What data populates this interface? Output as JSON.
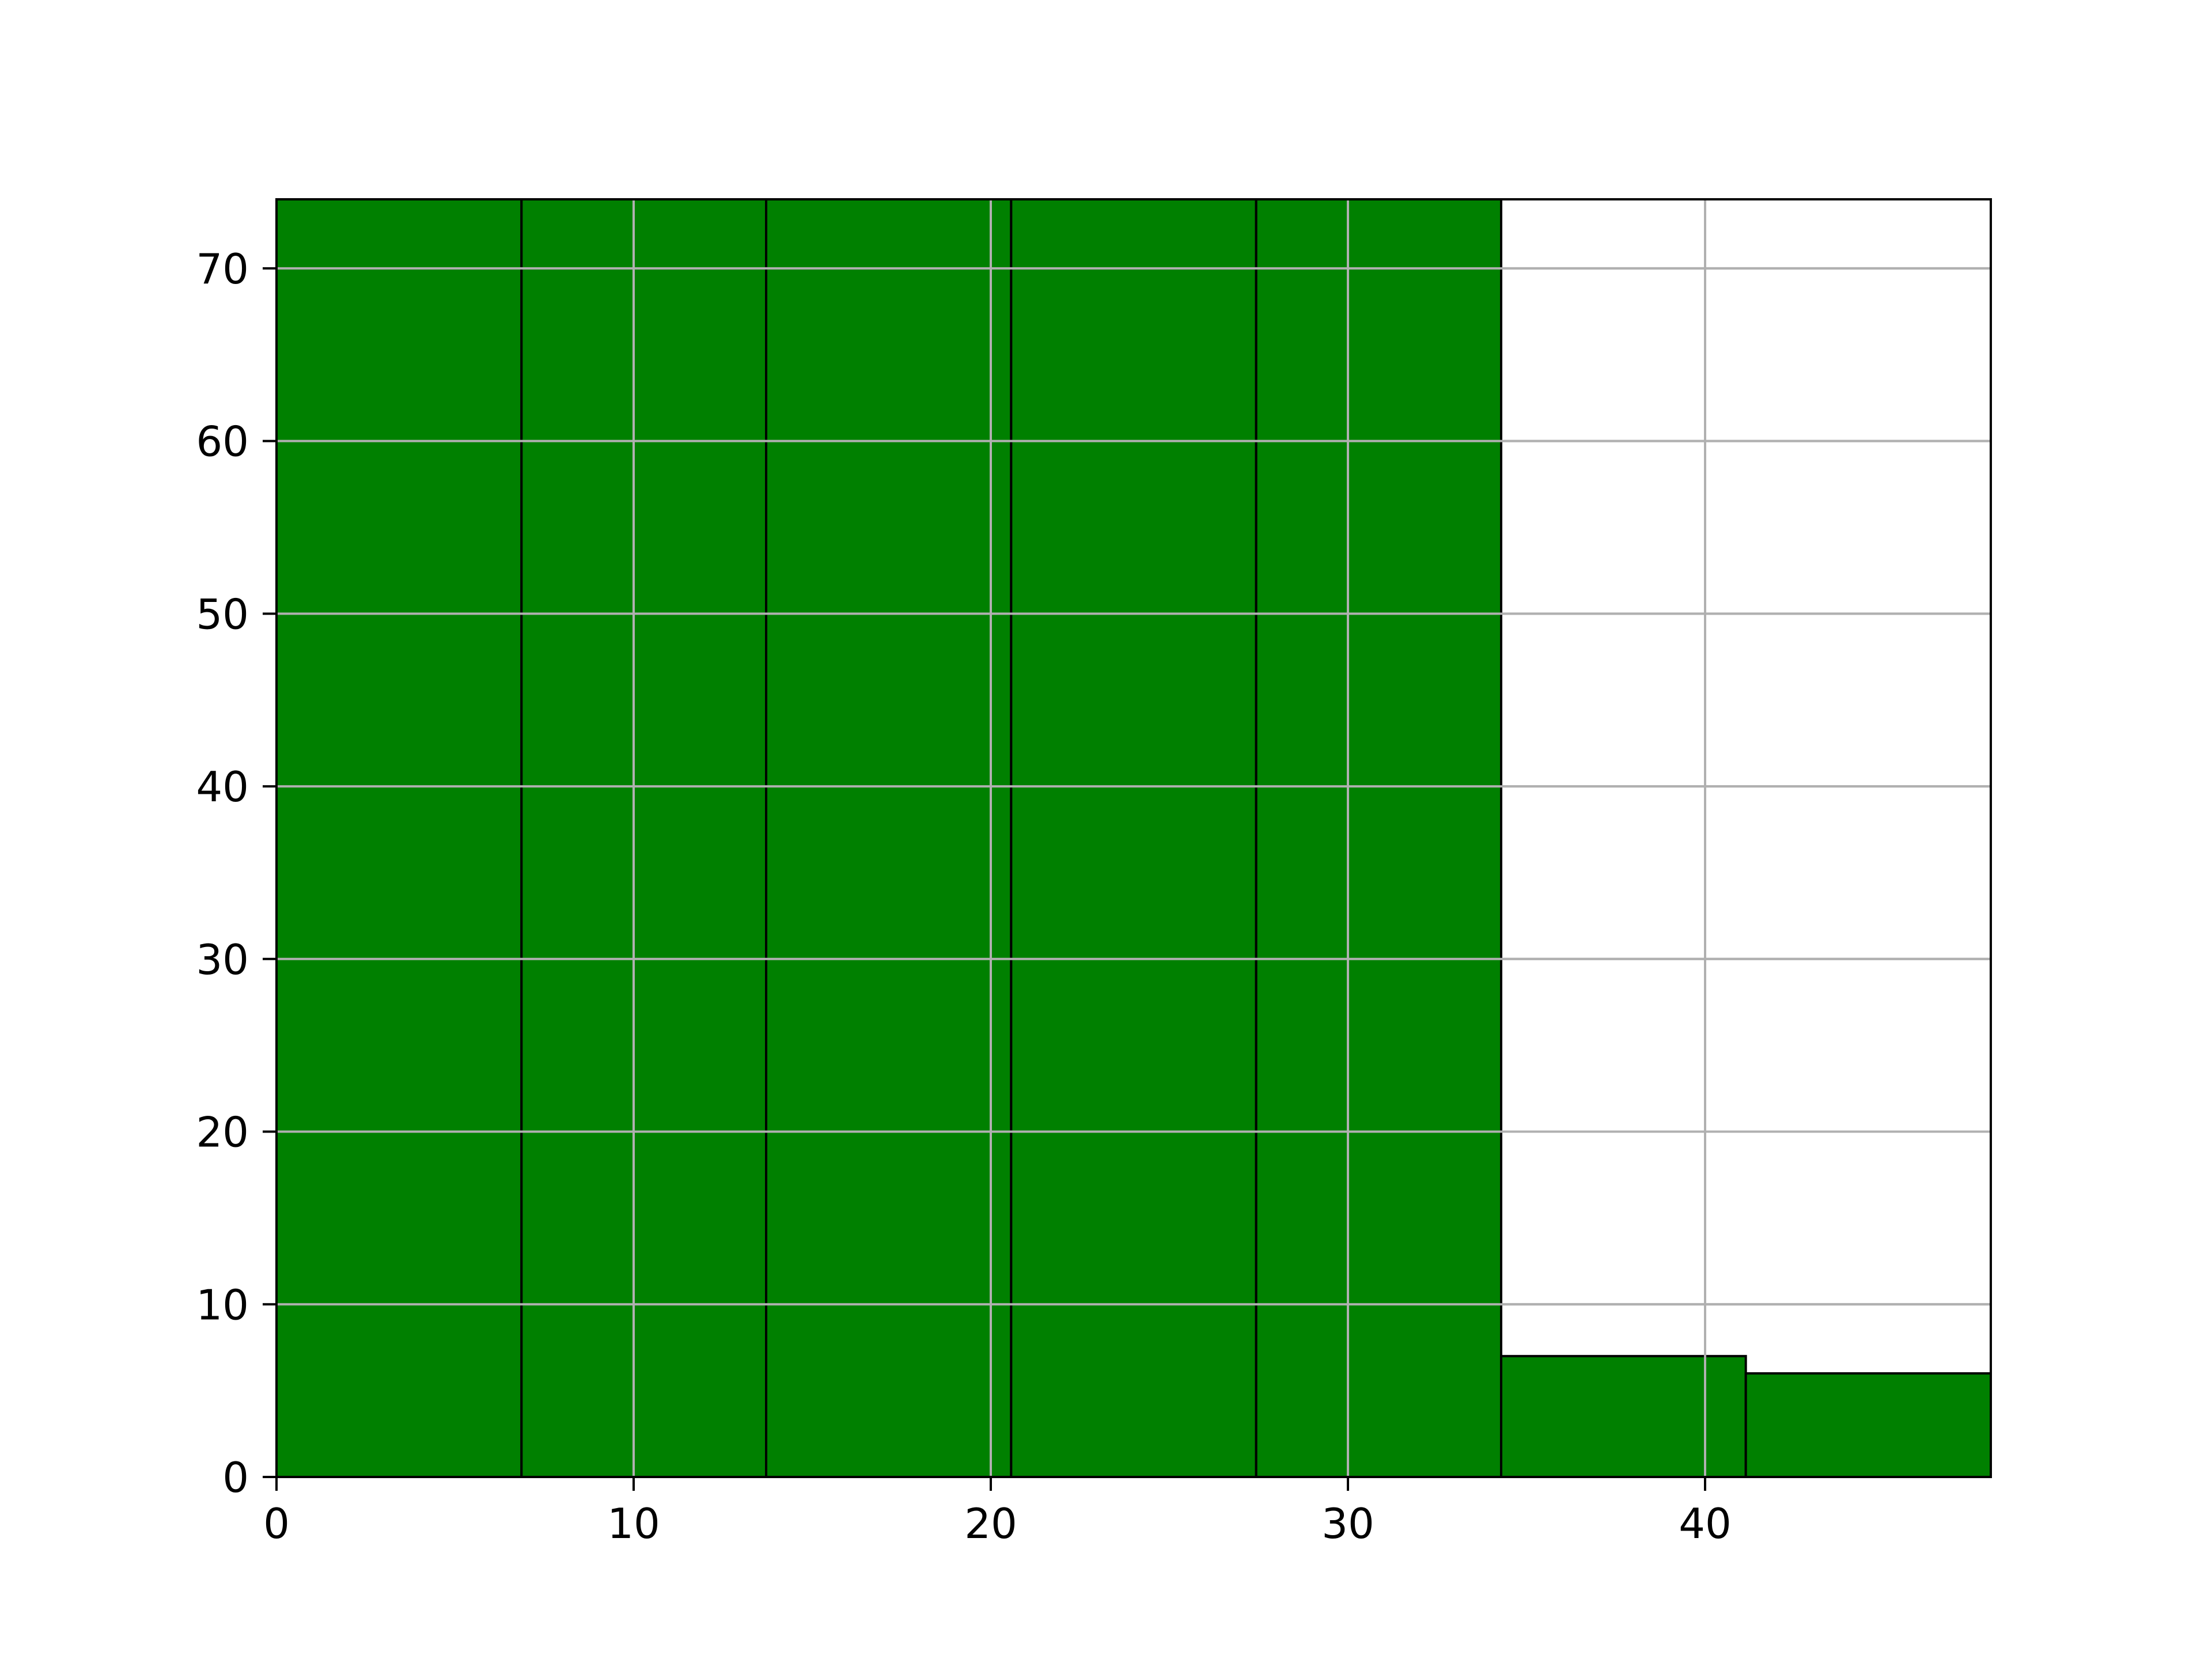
{
  "chart_data": {
    "type": "bar",
    "title": "",
    "xlabel": "",
    "ylabel": "",
    "bins": [
      {
        "x0": 0,
        "x1": 6.86,
        "value": 74
      },
      {
        "x0": 6.86,
        "x1": 13.71,
        "value": 74
      },
      {
        "x0": 13.71,
        "x1": 20.57,
        "value": 74
      },
      {
        "x0": 20.57,
        "x1": 27.43,
        "value": 74
      },
      {
        "x0": 27.43,
        "x1": 34.29,
        "value": 74
      },
      {
        "x0": 34.29,
        "x1": 41.14,
        "value": 7
      },
      {
        "x0": 41.14,
        "x1": 48,
        "value": 6
      }
    ],
    "xlim": [
      0,
      48
    ],
    "ylim": [
      0,
      74
    ],
    "xticks": [
      "0",
      "10",
      "20",
      "30",
      "40"
    ],
    "xtick_values": [
      0,
      10,
      20,
      30,
      40
    ],
    "yticks": [
      "0",
      "10",
      "20",
      "30",
      "40",
      "50",
      "60",
      "70"
    ],
    "ytick_values": [
      0,
      10,
      20,
      30,
      40,
      50,
      60,
      70
    ],
    "grid": true,
    "bar_color": "#008000",
    "edge_color": "#000000",
    "grid_color": "#b0b0b0"
  }
}
